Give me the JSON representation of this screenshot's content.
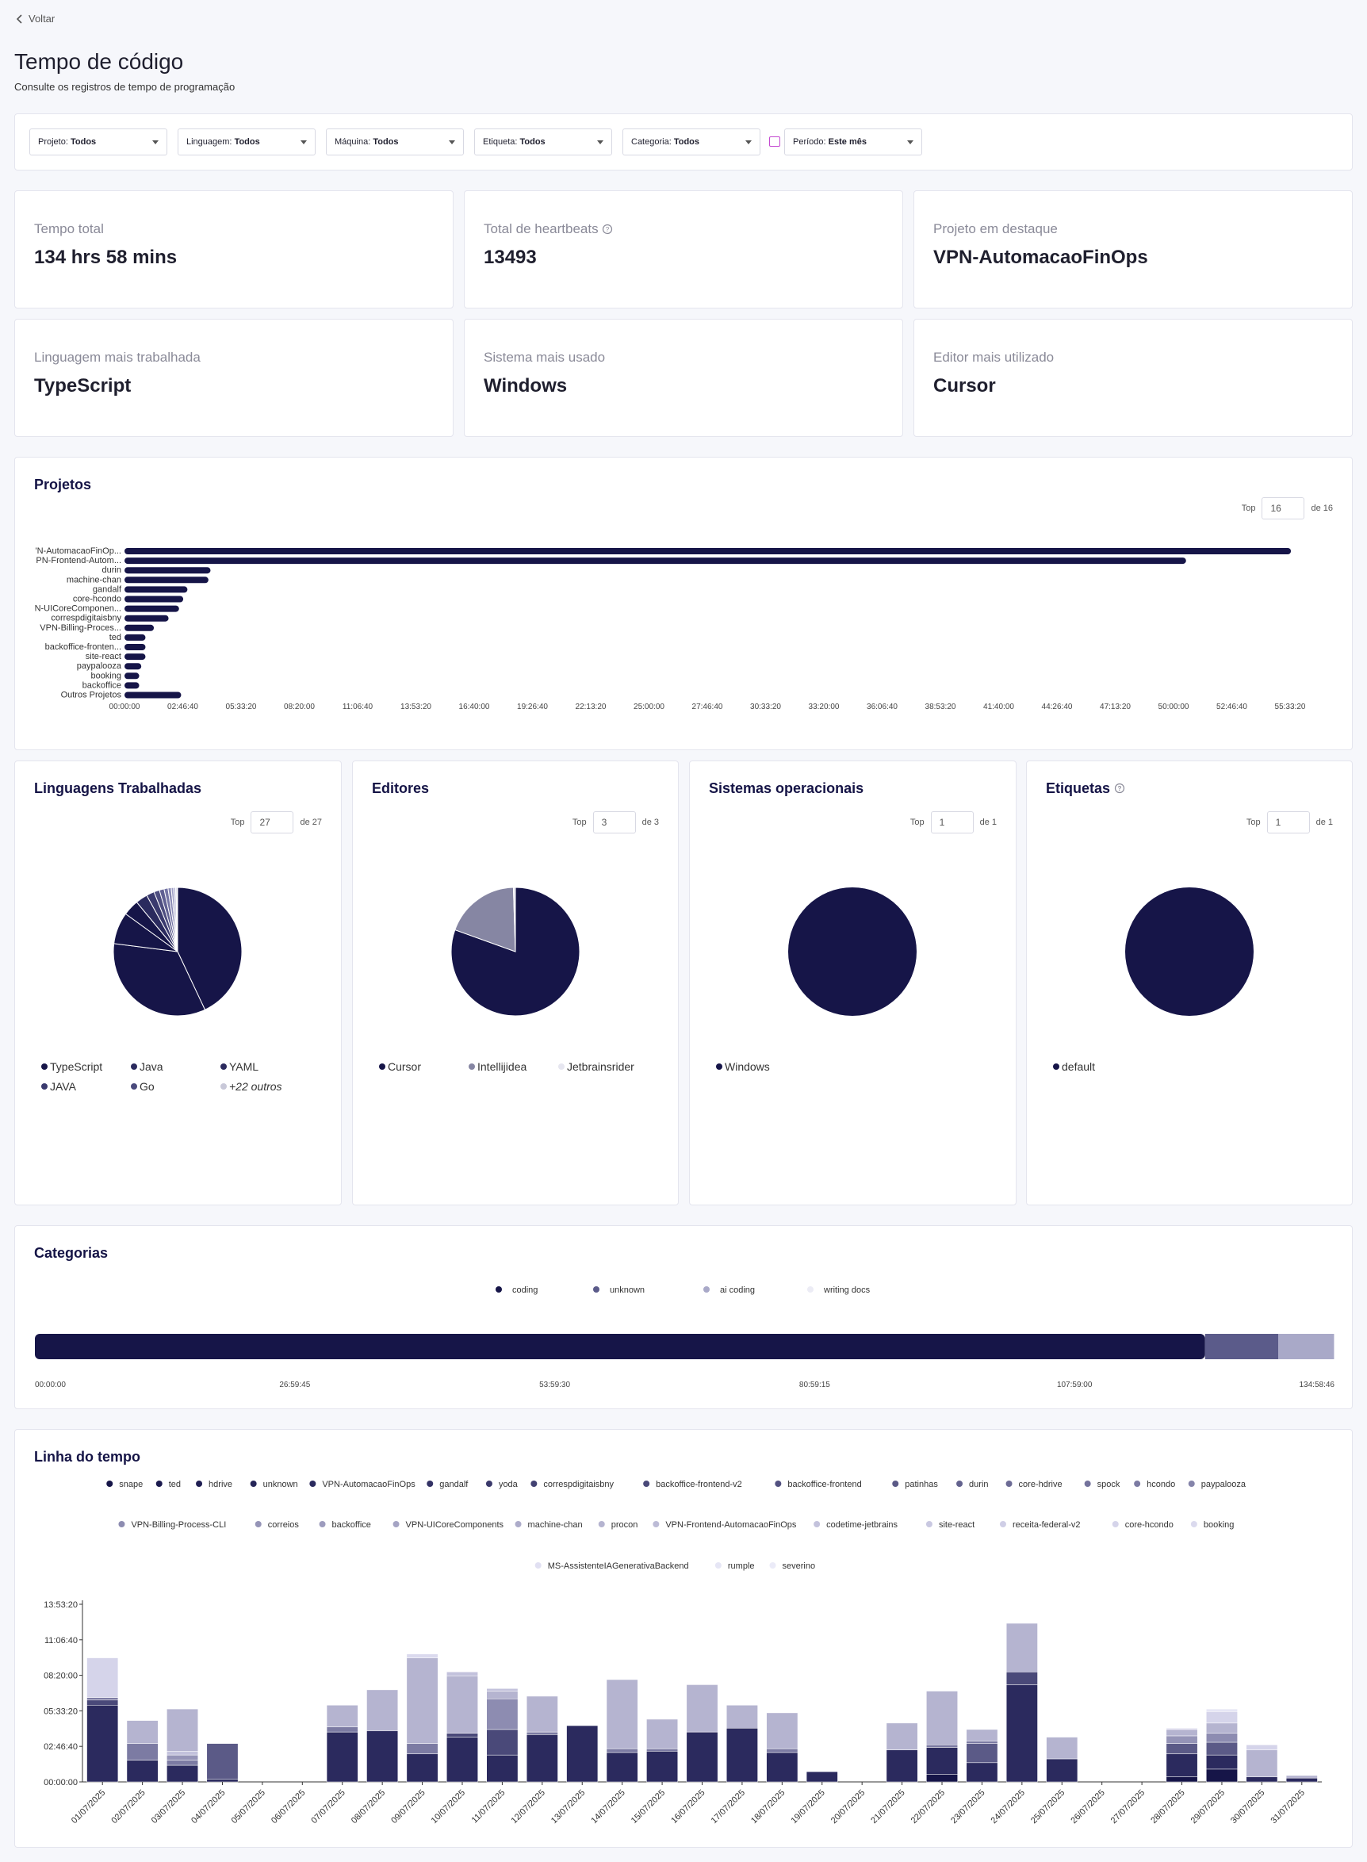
{
  "nav": {
    "back_label": "Voltar"
  },
  "header": {
    "title": "Tempo de código",
    "subtitle": "Consulte os registros de tempo de programação"
  },
  "filters": [
    {
      "label": "Projeto:",
      "value": "Todos"
    },
    {
      "label": "Linguagem:",
      "value": "Todos"
    },
    {
      "label": "Máquina:",
      "value": "Todos"
    },
    {
      "label": "Etiqueta:",
      "value": "Todos"
    },
    {
      "label": "Categoria:",
      "value": "Todos"
    },
    {
      "label": "Período:",
      "value": "Este mês"
    }
  ],
  "stats": [
    {
      "label": "Tempo total",
      "value": "134 hrs 58 mins"
    },
    {
      "label": "Total de heartbeats",
      "value": "13493"
    },
    {
      "label": "Projeto em destaque",
      "value": "VPN-AutomacaoFinOps"
    },
    {
      "label": "Linguagem mais trabalhada",
      "value": "TypeScript"
    },
    {
      "label": "Sistema mais usado",
      "value": "Windows"
    },
    {
      "label": "Editor mais utilizado",
      "value": "Cursor"
    }
  ],
  "projects": {
    "title": "Projetos",
    "top_label": "Top",
    "top_value": "16",
    "of_label": "de 16",
    "chart_data": {
      "type": "bar",
      "orientation": "horizontal",
      "categories": [
        "VPN-AutomacaoFinOp...",
        "VPN-Frontend-Autom...",
        "durin",
        "machine-chan",
        "gandalf",
        "core-hcondo",
        "VPN-UICoreComponen...",
        "correspdigitaisbny",
        "VPN-Billing-Proces...",
        "ted",
        "backoffice-fronten...",
        "site-react",
        "paypalooza",
        "booking",
        "backoffice",
        "Outros Projetos"
      ],
      "category_labels": [
        "'N-AutomacaoFinOp...",
        "PN-Frontend-Autom...",
        "durin",
        "machine-chan",
        "gandalf",
        "core-hcondo",
        "N-UICoreComponen...",
        "correspdigitaisbny",
        "VPN-Billing-Proces...",
        "ted",
        "backoffice-fronten...",
        "site-react",
        "paypalooza",
        "booking",
        "backoffice",
        "Outros Projetos"
      ],
      "values_hours": [
        55.6,
        50.6,
        4.1,
        4.0,
        3.0,
        2.8,
        2.6,
        2.1,
        1.4,
        1.0,
        1.0,
        1.0,
        0.8,
        0.7,
        0.7,
        2.7
      ],
      "x_ticks": [
        "00:00:00",
        "02:46:40",
        "05:33:20",
        "08:20:00",
        "11:06:40",
        "13:53:20",
        "16:40:00",
        "19:26:40",
        "22:13:20",
        "25:00:00",
        "27:46:40",
        "30:33:20",
        "33:20:00",
        "36:06:40",
        "38:53:20",
        "41:40:00",
        "44:26:40",
        "47:13:20",
        "50:00:00",
        "52:46:40",
        "55:33:20"
      ],
      "xlim_hours": [
        0,
        55.56
      ],
      "color": "#161548"
    }
  },
  "pies": [
    {
      "title": "Linguagens Trabalhadas",
      "top_value": "27",
      "of_label": "de 27",
      "chart_data": {
        "type": "pie",
        "labels": [
          "TypeScript",
          "Java",
          "YAML",
          "JAVA",
          "Go",
          "+22 outros"
        ],
        "values": [
          43,
          34,
          8,
          4,
          3,
          8
        ]
      },
      "slice_colors": [
        "#161548",
        "#161548",
        "#161548",
        "#161548",
        "#2a2a5e",
        "#3a3a6e",
        "#4e4e80",
        "#606092",
        "#7575a5",
        "#8a8ab5",
        "#9e9ec5",
        "#b5b5d5",
        "#cacae3",
        "#dcdcee",
        "#ebebf6"
      ],
      "slice_values": [
        43,
        34,
        8,
        4,
        3,
        2,
        1.4,
        1.2,
        1,
        0.8,
        0.6,
        0.5,
        0.3,
        0.1,
        0.1
      ],
      "legend": [
        {
          "label": "TypeScript",
          "color": "#161548"
        },
        {
          "label": "Java",
          "color": "#2b2a5e"
        },
        {
          "label": "YAML",
          "color": "#2b2a5e"
        },
        {
          "label": "JAVA",
          "color": "#3a3a6e"
        },
        {
          "label": "Go",
          "color": "#4a4a7c"
        },
        {
          "label": "+22 outros",
          "color": "#c8c8d8"
        }
      ]
    },
    {
      "title": "Editores",
      "top_value": "3",
      "of_label": "de 3",
      "chart_data": {
        "type": "pie",
        "labels": [
          "Cursor",
          "Intellijidea",
          "Jetbrainsrider"
        ],
        "values": [
          80.5,
          19,
          0.5
        ]
      },
      "slice_colors": [
        "#161548",
        "#8686a3",
        "#e6e6f0"
      ],
      "slice_values": [
        80.5,
        19,
        0.5
      ],
      "legend": [
        {
          "label": "Cursor",
          "color": "#161548"
        },
        {
          "label": "Intellijidea",
          "color": "#8686a3"
        },
        {
          "label": "Jetbrainsrider",
          "color": "#e6e6f0"
        }
      ]
    },
    {
      "title": "Sistemas operacionais",
      "top_value": "1",
      "of_label": "de 1",
      "chart_data": {
        "type": "pie",
        "labels": [
          "Windows"
        ],
        "values": [
          100
        ]
      },
      "slice_colors": [
        "#161548"
      ],
      "slice_values": [
        100
      ],
      "legend": [
        {
          "label": "Windows",
          "color": "#161548"
        }
      ]
    },
    {
      "title": "Etiquetas",
      "top_value": "1",
      "of_label": "de 1",
      "chart_data": {
        "type": "pie",
        "labels": [
          "default"
        ],
        "values": [
          100
        ]
      },
      "slice_colors": [
        "#161548"
      ],
      "slice_values": [
        100
      ],
      "legend": [
        {
          "label": "default",
          "color": "#161548"
        }
      ]
    }
  ],
  "categories": {
    "title": "Categorias",
    "chart_data": {
      "type": "bar",
      "stacked": true,
      "series": [
        {
          "name": "coding",
          "value_hours": 121.6,
          "color": "#161548"
        },
        {
          "name": "unknown",
          "value_hours": 7.6,
          "color": "#5b5b8a"
        },
        {
          "name": "ai coding",
          "value_hours": 5.8,
          "color": "#a9a9c8"
        },
        {
          "name": "writing docs",
          "value_hours": 0.05,
          "color": "#ececf5"
        }
      ],
      "x_ticks": [
        "00:00:00",
        "26:59:45",
        "53:59:30",
        "80:59:15",
        "107:59:00",
        "134:58:46"
      ],
      "xlim_hours": [
        0,
        134.98
      ]
    }
  },
  "timeline": {
    "title": "Linha do tempo",
    "legend": [
      {
        "name": "snape",
        "color": "#161548"
      },
      {
        "name": "ted",
        "color": "#1b1a4e"
      },
      {
        "name": "hdrive",
        "color": "#201f53"
      },
      {
        "name": "unknown",
        "color": "#262558"
      },
      {
        "name": "VPN-AutomacaoFinOps",
        "color": "#2b2a5e"
      },
      {
        "name": "gandalf",
        "color": "#333265"
      },
      {
        "name": "yoda",
        "color": "#3a396b"
      },
      {
        "name": "correspdigitaisbny",
        "color": "#424172"
      },
      {
        "name": "backoffice-frontend-v2",
        "color": "#4a4979"
      },
      {
        "name": "backoffice-frontend",
        "color": "#525180"
      },
      {
        "name": "patinhas",
        "color": "#5b5a87"
      },
      {
        "name": "durin",
        "color": "#63628e"
      },
      {
        "name": "core-hdrive",
        "color": "#6c6b95"
      },
      {
        "name": "spock",
        "color": "#74739c"
      },
      {
        "name": "hcondo",
        "color": "#7c7ba3"
      },
      {
        "name": "paypalooza",
        "color": "#8584aa"
      },
      {
        "name": "VPN-Billing-Process-CLI",
        "color": "#8d8cb1"
      },
      {
        "name": "correios",
        "color": "#9594b7"
      },
      {
        "name": "backoffice",
        "color": "#9d9cbe"
      },
      {
        "name": "VPN-UICoreComponents",
        "color": "#a5a4c4"
      },
      {
        "name": "machine-chan",
        "color": "#adacca"
      },
      {
        "name": "procon",
        "color": "#b5b4d0"
      },
      {
        "name": "VPN-Frontend-AutomacaoFinOps",
        "color": "#bcbbd6"
      },
      {
        "name": "codetime-jetbrains",
        "color": "#c3c2dc"
      },
      {
        "name": "site-react",
        "color": "#c9c8e1"
      },
      {
        "name": "receita-federal-v2",
        "color": "#cfcee6"
      },
      {
        "name": "core-hcondo",
        "color": "#d5d4ea"
      },
      {
        "name": "booking",
        "color": "#dbdaee"
      },
      {
        "name": "MS-AssistenteIAGenerativaBackend",
        "color": "#e1e0f2"
      },
      {
        "name": "rumple",
        "color": "#e6e6f5"
      },
      {
        "name": "severino",
        "color": "#ebebf8"
      }
    ],
    "chart_data": {
      "type": "bar",
      "stacked": true,
      "categories": [
        "01/07/2025",
        "02/07/2025",
        "03/07/2025",
        "04/07/2025",
        "05/07/2025",
        "06/07/2025",
        "07/07/2025",
        "08/07/2025",
        "09/07/2025",
        "10/07/2025",
        "11/07/2025",
        "12/07/2025",
        "13/07/2025",
        "14/07/2025",
        "15/07/2025",
        "16/07/2025",
        "17/07/2025",
        "18/07/2025",
        "19/07/2025",
        "20/07/2025",
        "21/07/2025",
        "22/07/2025",
        "23/07/2025",
        "24/07/2025",
        "25/07/2025",
        "26/07/2025",
        "27/07/2025",
        "28/07/2025",
        "29/07/2025",
        "30/07/2025",
        "31/07/2025"
      ],
      "y_ticks": [
        "00:00:00",
        "02:46:40",
        "05:33:20",
        "08:20:00",
        "11:06:40",
        "13:53:20"
      ],
      "ylim_hours": [
        0,
        13.89
      ],
      "stacks_hours": [
        [
          [
            6.0,
            "#2b2a5e"
          ],
          [
            0.4,
            "#4a4979"
          ],
          [
            0.2,
            "#7c7ba3"
          ],
          [
            3.1,
            "#d5d4ea"
          ]
        ],
        [
          [
            1.7,
            "#2b2a5e"
          ],
          [
            1.3,
            "#7c7ba3"
          ],
          [
            1.8,
            "#b5b4d0"
          ]
        ],
        [
          [
            1.3,
            "#2b2a5e"
          ],
          [
            0.4,
            "#7c7ba3"
          ],
          [
            0.4,
            "#9594b7"
          ],
          [
            0.3,
            "#c3c2dc"
          ],
          [
            3.3,
            "#b5b4d0"
          ]
        ],
        [
          [
            0.2,
            "#2b2a5e"
          ],
          [
            2.8,
            "#5b5a87"
          ]
        ],
        [],
        [],
        [
          [
            3.9,
            "#2b2a5e"
          ],
          [
            0.4,
            "#7c7ba3"
          ],
          [
            1.7,
            "#b5b4d0"
          ]
        ],
        [
          [
            4.0,
            "#2b2a5e"
          ],
          [
            3.2,
            "#b5b4d0"
          ]
        ],
        [
          [
            2.2,
            "#2b2a5e"
          ],
          [
            0.8,
            "#7c7ba3"
          ],
          [
            6.7,
            "#b5b4d0"
          ],
          [
            0.3,
            "#dbdaee"
          ]
        ],
        [
          [
            3.5,
            "#2b2a5e"
          ],
          [
            0.3,
            "#4a4979"
          ],
          [
            4.5,
            "#b5b4d0"
          ],
          [
            0.3,
            "#c3c2dc"
          ]
        ],
        [
          [
            2.1,
            "#2b2a5e"
          ],
          [
            2.0,
            "#4a4979"
          ],
          [
            2.4,
            "#8d8cb1"
          ],
          [
            0.6,
            "#b5b4d0"
          ],
          [
            0.2,
            "#c3c2dc"
          ]
        ],
        [
          [
            3.7,
            "#2b2a5e"
          ],
          [
            0.2,
            "#7c7ba3"
          ],
          [
            2.8,
            "#b5b4d0"
          ]
        ],
        [
          [
            4.4,
            "#2b2a5e"
          ]
        ],
        [
          [
            2.3,
            "#2b2a5e"
          ],
          [
            0.3,
            "#7c7ba3"
          ],
          [
            5.4,
            "#b5b4d0"
          ]
        ],
        [
          [
            2.4,
            "#2b2a5e"
          ],
          [
            0.2,
            "#7c7ba3"
          ],
          [
            2.3,
            "#b5b4d0"
          ]
        ],
        [
          [
            3.9,
            "#2b2a5e"
          ],
          [
            3.7,
            "#b5b4d0"
          ]
        ],
        [
          [
            4.2,
            "#2b2a5e"
          ],
          [
            1.8,
            "#b5b4d0"
          ]
        ],
        [
          [
            2.3,
            "#2b2a5e"
          ],
          [
            0.3,
            "#7c7ba3"
          ],
          [
            2.8,
            "#b5b4d0"
          ]
        ],
        [
          [
            0.8,
            "#2b2a5e"
          ]
        ],
        [],
        [
          [
            2.5,
            "#2b2a5e"
          ],
          [
            2.1,
            "#b5b4d0"
          ]
        ],
        [
          [
            0.6,
            "#161548"
          ],
          [
            2.1,
            "#2b2a5e"
          ],
          [
            0.2,
            "#7c7ba3"
          ],
          [
            4.2,
            "#b5b4d0"
          ]
        ],
        [
          [
            1.5,
            "#2b2a5e"
          ],
          [
            1.5,
            "#5b5a87"
          ],
          [
            0.2,
            "#7c7ba3"
          ],
          [
            0.9,
            "#b5b4d0"
          ]
        ],
        [
          [
            7.6,
            "#2b2a5e"
          ],
          [
            1.0,
            "#4a4979"
          ],
          [
            3.8,
            "#b5b4d0"
          ]
        ],
        [
          [
            1.8,
            "#2b2a5e"
          ],
          [
            1.7,
            "#b5b4d0"
          ]
        ],
        [],
        [],
        [
          [
            0.4,
            "#161548"
          ],
          [
            1.8,
            "#2b2a5e"
          ],
          [
            0.8,
            "#5b5a87"
          ],
          [
            0.6,
            "#9594b7"
          ],
          [
            0.5,
            "#b5b4d0"
          ],
          [
            0.1,
            "#dbdaee"
          ]
        ],
        [
          [
            1.0,
            "#161548"
          ],
          [
            1.1,
            "#2b2a5e"
          ],
          [
            1.0,
            "#5b5a87"
          ],
          [
            0.7,
            "#8d8cb1"
          ],
          [
            0.8,
            "#b5b4d0"
          ],
          [
            0.9,
            "#d5d4ea"
          ],
          [
            0.2,
            "#e6e6f5"
          ]
        ],
        [
          [
            0.4,
            "#2b2a5e"
          ],
          [
            2.1,
            "#b5b4d0"
          ],
          [
            0.4,
            "#d5d4ea"
          ]
        ],
        [
          [
            0.3,
            "#2b2a5e"
          ],
          [
            0.2,
            "#b5b4d0"
          ]
        ]
      ]
    }
  }
}
